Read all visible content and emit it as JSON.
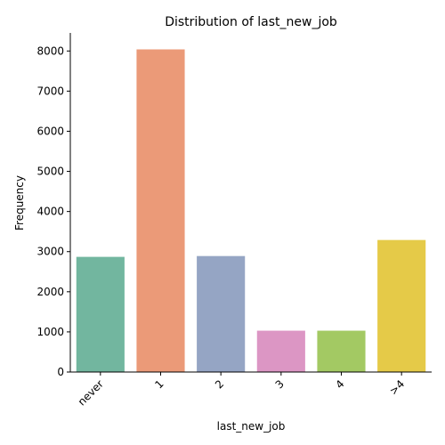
{
  "chart_data": {
    "type": "bar",
    "title": "Distribution of last_new_job",
    "xlabel": "last_new_job",
    "ylabel": "Frequency",
    "categories": [
      "never",
      "1",
      "2",
      "3",
      "4",
      ">4"
    ],
    "values": [
      2870,
      8040,
      2890,
      1030,
      1030,
      3290
    ],
    "colors": [
      "#72b69f",
      "#eb9a78",
      "#95a5c4",
      "#dc96c4",
      "#a3c963",
      "#e5ca48"
    ],
    "ylim": [
      0,
      8450
    ],
    "yticks": [
      0,
      1000,
      2000,
      3000,
      4000,
      5000,
      6000,
      7000,
      8000
    ],
    "grid": false,
    "legend": "none"
  }
}
